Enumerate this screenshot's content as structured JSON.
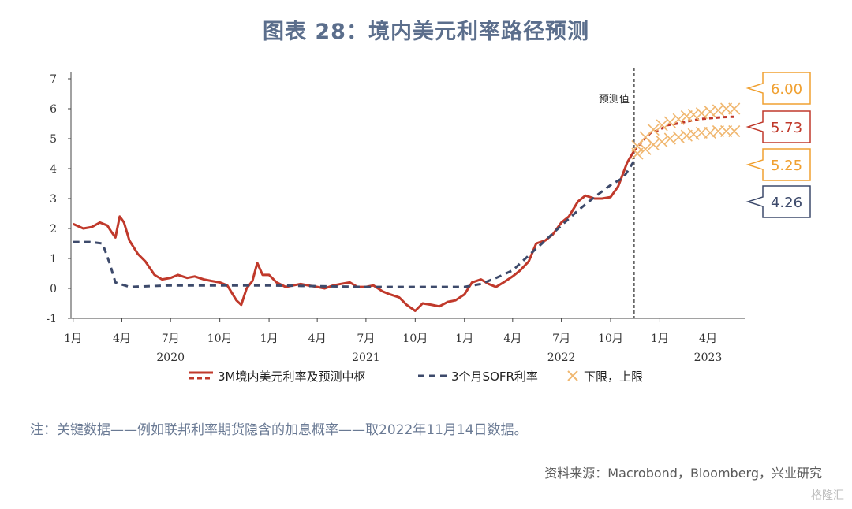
{
  "chart_data": {
    "type": "line",
    "title": "图表 28：境内美元利率路径预测",
    "ylim": [
      -1,
      7
    ],
    "yticks": [
      "-1",
      "0",
      "1",
      "2",
      "3",
      "4",
      "5",
      "6",
      "7"
    ],
    "xticks": [
      {
        "label": "1月",
        "date": "2020-01-01"
      },
      {
        "label": "4月",
        "date": "2020-04-01"
      },
      {
        "label": "7月",
        "date": "2020-07-01"
      },
      {
        "label": "10月",
        "date": "2020-10-01"
      },
      {
        "label": "1月",
        "date": "2021-01-01"
      },
      {
        "label": "4月",
        "date": "2021-04-01"
      },
      {
        "label": "7月",
        "date": "2021-07-01"
      },
      {
        "label": "10月",
        "date": "2021-10-01"
      },
      {
        "label": "1月",
        "date": "2022-01-01"
      },
      {
        "label": "4月",
        "date": "2022-04-01"
      },
      {
        "label": "7月",
        "date": "2022-07-01"
      },
      {
        "label": "10月",
        "date": "2022-10-01"
      },
      {
        "label": "1月",
        "date": "2023-01-01"
      },
      {
        "label": "4月",
        "date": "2023-04-01"
      }
    ],
    "year_labels": [
      {
        "label": "2020",
        "date": "2020-07-01"
      },
      {
        "label": "2021",
        "date": "2021-07-01"
      },
      {
        "label": "2022",
        "date": "2022-07-01"
      },
      {
        "label": "2023",
        "date": "2023-04-01"
      }
    ],
    "xlim": [
      "2019-12-28",
      "2023-06-10"
    ],
    "forecast_label": "预测值",
    "forecast_date": "2022-11-14",
    "series": [
      {
        "name": "3M境内美元利率及预测中枢",
        "color": "#c0392b",
        "style": "solid",
        "x": [
          "2020-01-01",
          "2020-01-20",
          "2020-02-05",
          "2020-02-20",
          "2020-03-05",
          "2020-03-12",
          "2020-03-20",
          "2020-03-28",
          "2020-04-05",
          "2020-04-15",
          "2020-05-01",
          "2020-05-15",
          "2020-06-01",
          "2020-06-15",
          "2020-07-01",
          "2020-07-15",
          "2020-08-01",
          "2020-08-15",
          "2020-09-01",
          "2020-09-15",
          "2020-10-01",
          "2020-10-15",
          "2020-11-01",
          "2020-11-10",
          "2020-11-20",
          "2020-12-01",
          "2020-12-10",
          "2020-12-20",
          "2021-01-01",
          "2021-01-15",
          "2021-02-01",
          "2021-02-15",
          "2021-03-01",
          "2021-03-15",
          "2021-04-01",
          "2021-04-15",
          "2021-05-01",
          "2021-05-15",
          "2021-06-01",
          "2021-06-15",
          "2021-07-01",
          "2021-07-15",
          "2021-08-01",
          "2021-08-15",
          "2021-09-01",
          "2021-09-15",
          "2021-10-01",
          "2021-10-15",
          "2021-11-01",
          "2021-11-15",
          "2021-12-01",
          "2021-12-15",
          "2022-01-01",
          "2022-01-15",
          "2022-02-01",
          "2022-02-15",
          "2022-03-01",
          "2022-03-15",
          "2022-04-01",
          "2022-04-15",
          "2022-05-01",
          "2022-05-15",
          "2022-06-01",
          "2022-06-15",
          "2022-07-01",
          "2022-07-15",
          "2022-08-01",
          "2022-08-15",
          "2022-09-01",
          "2022-09-15",
          "2022-10-01",
          "2022-10-15",
          "2022-11-01",
          "2022-11-14"
        ],
        "values": [
          2.15,
          2.0,
          2.05,
          2.2,
          2.1,
          1.9,
          1.7,
          2.4,
          2.2,
          1.6,
          1.15,
          0.9,
          0.45,
          0.3,
          0.35,
          0.45,
          0.35,
          0.4,
          0.3,
          0.25,
          0.2,
          0.1,
          -0.4,
          -0.55,
          0.0,
          0.25,
          0.85,
          0.45,
          0.45,
          0.2,
          0.05,
          0.1,
          0.15,
          0.1,
          0.05,
          0.0,
          0.1,
          0.15,
          0.2,
          0.05,
          0.05,
          0.1,
          -0.1,
          -0.2,
          -0.3,
          -0.55,
          -0.75,
          -0.5,
          -0.55,
          -0.6,
          -0.45,
          -0.4,
          -0.2,
          0.2,
          0.3,
          0.15,
          0.05,
          0.2,
          0.4,
          0.6,
          0.9,
          1.5,
          1.6,
          1.8,
          2.2,
          2.4,
          2.9,
          3.1,
          3.0,
          3.0,
          3.05,
          3.4,
          4.2,
          4.6
        ]
      },
      {
        "name": "3个月SOFR利率",
        "color": "#3d4a6b",
        "style": "dashed",
        "x": [
          "2020-01-01",
          "2020-02-01",
          "2020-02-25",
          "2020-03-10",
          "2020-03-20",
          "2020-04-15",
          "2020-07-01",
          "2021-01-01",
          "2021-07-01",
          "2022-01-01",
          "2022-02-01",
          "2022-03-01",
          "2022-04-01",
          "2022-05-01",
          "2022-06-01",
          "2022-07-01",
          "2022-08-01",
          "2022-09-01",
          "2022-10-01",
          "2022-10-25",
          "2022-11-14"
        ],
        "values": [
          1.55,
          1.55,
          1.5,
          0.8,
          0.2,
          0.05,
          0.1,
          0.1,
          0.05,
          0.05,
          0.15,
          0.35,
          0.6,
          1.1,
          1.6,
          2.1,
          2.6,
          3.05,
          3.45,
          3.7,
          4.26
        ]
      },
      {
        "name": "3M境内美元利率及预测中枢",
        "color": "#c0392b",
        "style": "dashed",
        "x": [
          "2022-11-14",
          "2022-12-01",
          "2022-12-15",
          "2023-01-01",
          "2023-01-15",
          "2023-02-01",
          "2023-02-15",
          "2023-03-01",
          "2023-03-15",
          "2023-04-01",
          "2023-04-15",
          "2023-05-01",
          "2023-05-15",
          "2023-05-25"
        ],
        "values": [
          4.6,
          4.95,
          5.2,
          5.3,
          5.45,
          5.5,
          5.55,
          5.6,
          5.65,
          5.68,
          5.7,
          5.72,
          5.73,
          5.73
        ]
      },
      {
        "name": "下限",
        "color": "#f0b770",
        "style": "cross",
        "x": [
          "2022-11-20",
          "2022-12-05",
          "2022-12-20",
          "2023-01-05",
          "2023-01-20",
          "2023-02-05",
          "2023-02-20",
          "2023-03-05",
          "2023-03-20",
          "2023-04-05",
          "2023-04-20",
          "2023-05-05",
          "2023-05-20"
        ],
        "values": [
          4.5,
          4.65,
          4.8,
          4.9,
          5.0,
          5.05,
          5.1,
          5.15,
          5.2,
          5.2,
          5.25,
          5.25,
          5.25
        ]
      },
      {
        "name": "上限",
        "color": "#f0b770",
        "style": "cross",
        "x": [
          "2022-11-20",
          "2022-12-05",
          "2022-12-20",
          "2023-01-05",
          "2023-01-20",
          "2023-02-05",
          "2023-02-20",
          "2023-03-05",
          "2023-03-20",
          "2023-04-05",
          "2023-04-20",
          "2023-05-05",
          "2023-05-20"
        ],
        "values": [
          4.75,
          5.05,
          5.3,
          5.45,
          5.55,
          5.65,
          5.75,
          5.8,
          5.85,
          5.9,
          5.95,
          6.0,
          6.0
        ]
      }
    ],
    "legend": [
      {
        "label": "3M境内美元利率及预测中枢",
        "color": "#c0392b",
        "style": "solid-dash"
      },
      {
        "label": "3个月SOFR利率",
        "color": "#3d4a6b",
        "style": "dashed"
      },
      {
        "label": "下限，上限",
        "color": "#f0b770",
        "style": "cross"
      }
    ],
    "annotations": [
      {
        "text": "6.00",
        "value": 6.0,
        "color": "#f0a030",
        "border": "#f0a030"
      },
      {
        "text": "5.73",
        "value": 5.73,
        "color": "#c0392b",
        "border": "#c0392b"
      },
      {
        "text": "5.25",
        "value": 5.25,
        "color": "#f0a030",
        "border": "#f0a030"
      },
      {
        "text": "4.26",
        "value": 4.26,
        "color": "#3d4a6b",
        "border": "#3d4a6b"
      }
    ]
  },
  "note": "注：关键数据——例如联邦利率期货隐含的加息概率——取2022年11月14日数据。",
  "source": "资料来源：Macrobond，Bloomberg，兴业研究",
  "watermark": "格隆汇"
}
